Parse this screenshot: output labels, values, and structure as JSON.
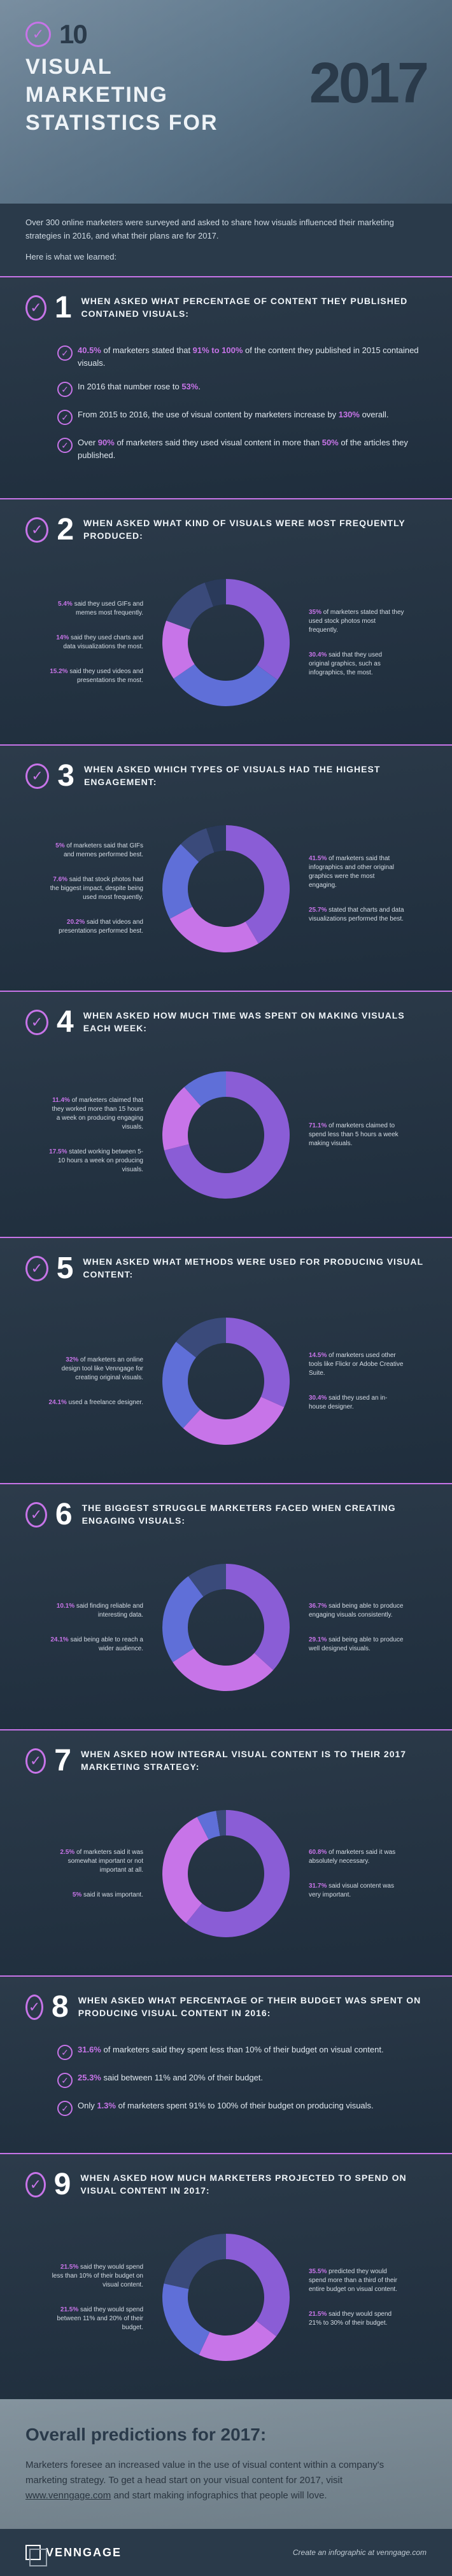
{
  "hero": {
    "ten": "10",
    "title_l1": "VISUAL",
    "title_l2": "MARKETING",
    "title_l3": "STATISTICS FOR",
    "year": "2017"
  },
  "intro": {
    "p1": "Over 300 online marketers were surveyed and asked to share how visuals influenced their marketing strategies in 2016, and what their plans are for 2017.",
    "p2": "Here is what we learned:"
  },
  "sections": [
    {
      "num": "1",
      "title": "WHEN ASKED WHAT PERCENTAGE OF CONTENT THEY PUBLISHED CONTAINED VISUALS:",
      "type": "bullets",
      "bullets": [
        {
          "pct1": "40.5%",
          "t1": " of marketers stated that ",
          "pct2": "91% to 100%",
          "t2": " of the content they published in 2015 contained visuals."
        },
        {
          "t1": "In 2016 that number rose to ",
          "pct1": "53%",
          "t2": "."
        },
        {
          "t1": "From 2015 to 2016, the use of visual content by marketers increase by ",
          "pct1": "130%",
          "t2": " overall."
        },
        {
          "t1": "Over ",
          "pct1": "90%",
          "t2": " of marketers said they used visual content in more than ",
          "pct2": "50%",
          "t3": " of the articles they published."
        }
      ]
    },
    {
      "num": "2",
      "title": "WHEN ASKED WHAT KIND OF VISUALS WERE MOST FREQUENTLY PRODUCED:",
      "type": "chart",
      "left": [
        {
          "pct": "5.4%",
          "t": " said they used GIFs and memes most frequently."
        },
        {
          "pct": "14%",
          "t": " said they used charts and data visualizations the most."
        },
        {
          "pct": "15.2%",
          "t": " said they used videos and presentations the most."
        }
      ],
      "right": [
        {
          "pct": "35%",
          "t": " of marketers stated that they used stock photos most frequently."
        },
        {
          "pct": "30.4%",
          "t": " said that they used original graphics, such as infographics, the most."
        }
      ],
      "slices": [
        {
          "v": 35,
          "c": "#8a5dd6"
        },
        {
          "v": 30.4,
          "c": "#5f6fd8"
        },
        {
          "v": 15.2,
          "c": "#c774e8"
        },
        {
          "v": 14,
          "c": "#3a4a7a"
        },
        {
          "v": 5.4,
          "c": "#2a3a5a"
        }
      ]
    },
    {
      "num": "3",
      "title": "WHEN ASKED WHICH TYPES OF VISUALS HAD THE HIGHEST ENGAGEMENT:",
      "type": "chart",
      "left": [
        {
          "pct": "5%",
          "t": " of marketers said that GIFs and memes performed best."
        },
        {
          "pct": "7.6%",
          "t": " said that stock photos had the biggest impact, despite being used most frequently."
        },
        {
          "pct": "20.2%",
          "t": " said that videos and presentations performed best."
        }
      ],
      "right": [
        {
          "pct": "41.5%",
          "t": " of marketers said that infographics and other original graphics were the most engaging."
        },
        {
          "pct": "25.7%",
          "t": " stated that charts and data visualizations performed the best."
        }
      ],
      "slices": [
        {
          "v": 41.5,
          "c": "#8a5dd6"
        },
        {
          "v": 25.7,
          "c": "#c774e8"
        },
        {
          "v": 20.2,
          "c": "#5f6fd8"
        },
        {
          "v": 7.6,
          "c": "#3a4a7a"
        },
        {
          "v": 5,
          "c": "#2a3a5a"
        }
      ]
    },
    {
      "num": "4",
      "title": "WHEN ASKED HOW MUCH TIME WAS SPENT ON MAKING VISUALS EACH WEEK:",
      "type": "chart",
      "left": [
        {
          "pct": "11.4%",
          "t": " of marketers claimed that they worked more than 15 hours a week on producing engaging visuals."
        },
        {
          "pct": "17.5%",
          "t": " stated working between 5-10 hours a week on producing visuals."
        }
      ],
      "right": [
        {
          "pct": "71.1%",
          "t": " of marketers claimed to spend less than 5 hours a week making visuals."
        }
      ],
      "slices": [
        {
          "v": 71.1,
          "c": "#8a5dd6"
        },
        {
          "v": 17.5,
          "c": "#c774e8"
        },
        {
          "v": 11.4,
          "c": "#5f6fd8"
        }
      ]
    },
    {
      "num": "5",
      "title": "WHEN ASKED WHAT METHODS WERE USED FOR PRODUCING VISUAL CONTENT:",
      "type": "chart",
      "left": [
        {
          "pct": "32%",
          "t": " of marketers an online design tool like Venngage for creating original visuals."
        },
        {
          "pct": "24.1%",
          "t": " used a freelance designer."
        }
      ],
      "right": [
        {
          "pct": "14.5%",
          "t": " of marketers used other tools like Flickr or Adobe Creative Suite."
        },
        {
          "pct": "30.4%",
          "t": " said they used an in-house designer."
        }
      ],
      "slices": [
        {
          "v": 32,
          "c": "#8a5dd6"
        },
        {
          "v": 30.4,
          "c": "#c774e8"
        },
        {
          "v": 24.1,
          "c": "#5f6fd8"
        },
        {
          "v": 14.5,
          "c": "#3a4a7a"
        }
      ]
    },
    {
      "num": "6",
      "title": "THE BIGGEST STRUGGLE MARKETERS FACED WHEN CREATING ENGAGING VISUALS:",
      "type": "chart",
      "left": [
        {
          "pct": "10.1%",
          "t": " said finding reliable and interesting data."
        },
        {
          "pct": "24.1%",
          "t": " said being able to reach a wider audience."
        }
      ],
      "right": [
        {
          "pct": "36.7%",
          "t": " said being able to produce engaging visuals consistently."
        },
        {
          "pct": "29.1%",
          "t": " said being able to produce well designed visuals."
        }
      ],
      "slices": [
        {
          "v": 36.7,
          "c": "#8a5dd6"
        },
        {
          "v": 29.1,
          "c": "#c774e8"
        },
        {
          "v": 24.1,
          "c": "#5f6fd8"
        },
        {
          "v": 10.1,
          "c": "#3a4a7a"
        }
      ]
    },
    {
      "num": "7",
      "title": "WHEN ASKED HOW INTEGRAL VISUAL CONTENT IS TO THEIR 2017 MARKETING STRATEGY:",
      "type": "chart",
      "left": [
        {
          "pct": "2.5%",
          "t": " of marketers said it was somewhat important or not important at all."
        },
        {
          "pct": "5%",
          "t": " said it was important."
        }
      ],
      "right": [
        {
          "pct": "60.8%",
          "t": " of marketers said it was absolutely necessary."
        },
        {
          "pct": "31.7%",
          "t": " said visual content was very important."
        }
      ],
      "slices": [
        {
          "v": 60.8,
          "c": "#8a5dd6"
        },
        {
          "v": 31.7,
          "c": "#c774e8"
        },
        {
          "v": 5,
          "c": "#5f6fd8"
        },
        {
          "v": 2.5,
          "c": "#3a4a7a"
        }
      ]
    },
    {
      "num": "8",
      "title": "WHEN ASKED WHAT PERCENTAGE OF THEIR BUDGET WAS SPENT ON PRODUCING VISUAL CONTENT IN 2016:",
      "type": "bullets",
      "bullets": [
        {
          "pct1": "31.6%",
          "t1": " of marketers said they spent less than 10% of their budget on visual content."
        },
        {
          "pct1": "25.3%",
          "t1": " said between 11% and 20% of their budget."
        },
        {
          "t1": "Only ",
          "pct1": "1.3%",
          "t2": " of marketers spent 91% to 100% of their budget on producing visuals."
        }
      ]
    },
    {
      "num": "9",
      "title": "WHEN ASKED HOW MUCH MARKETERS PROJECTED TO SPEND ON VISUAL CONTENT IN 2017:",
      "type": "chart",
      "left": [
        {
          "pct": "21.5%",
          "t": " said they would spend less than 10% of their budget on visual content."
        },
        {
          "pct": "21.5%",
          "t": " said they would spend between 11% and 20% of their budget."
        }
      ],
      "right": [
        {
          "pct": "35.5%",
          "t": " predicted they would spend more than a third of their entire budget on visual content."
        },
        {
          "pct": "21.5%",
          "t": " said they would spend 21% to 30% of their budget."
        }
      ],
      "slices": [
        {
          "v": 35.5,
          "c": "#8a5dd6"
        },
        {
          "v": 21.5,
          "c": "#c774e8"
        },
        {
          "v": 21.5,
          "c": "#5f6fd8"
        },
        {
          "v": 21.5,
          "c": "#3a4a7a"
        }
      ]
    }
  ],
  "summary": {
    "title": "Overall predictions for 2017:",
    "text1": "Marketers foresee an increased value in the use of visual content within a company's marketing strategy. To get a head start on your visual content for 2017, visit ",
    "link": "www.venngage.com",
    "text2": " and start making infographics that people will love."
  },
  "footer": {
    "logo": "VENNGAGE",
    "credit": "Create an infographic at venngage.com"
  },
  "style": {
    "accent": "#c774e8",
    "donut_bg": "#1a2535",
    "donut_inner": 60,
    "donut_outer": 100
  }
}
